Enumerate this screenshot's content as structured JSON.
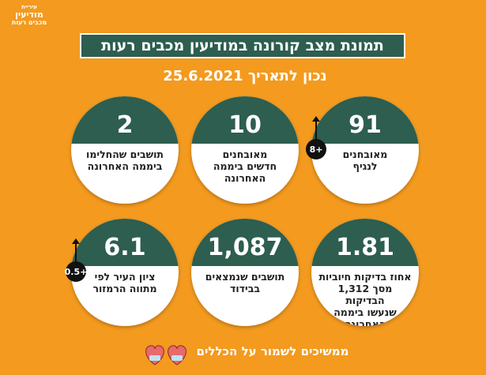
{
  "logo": [
    "עיריית",
    "מודיעין",
    "מכבים רעות"
  ],
  "header": {
    "title": "תמונת מצב קורונה במודיעין מכבים רעות",
    "date": "נכון לתאריך 25.6.2021"
  },
  "cards": [
    {
      "value": "91",
      "label": [
        "מאובחנים",
        "לנגיף"
      ],
      "badge": "+8"
    },
    {
      "value": "10",
      "label": [
        "מאובחנים",
        "חדשים ביממה",
        "האחרונה"
      ]
    },
    {
      "value": "2",
      "label": [
        "תושבים שהחלימו",
        "ביממה האחרונה"
      ]
    },
    {
      "value": "1.81",
      "label": [
        "אחוז בדיקות חיוביות",
        "מסך 1,312 הבדיקות",
        "שנעשו ביממה",
        "האחרונה"
      ]
    },
    {
      "value": "1,087",
      "label": [
        "תושבים שנמצאים",
        "בבידוד"
      ]
    },
    {
      "value": "6.1",
      "label": [
        "ציון העיר לפי",
        "מתווה הרמזור"
      ],
      "badge": "+0.5"
    }
  ],
  "footer": "ממשיכים לשמור על הכללים"
}
